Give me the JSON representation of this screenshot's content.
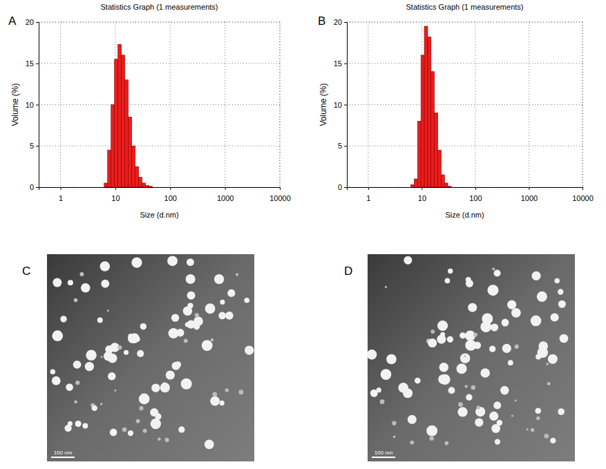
{
  "panels": [
    "A",
    "B",
    "C",
    "D"
  ],
  "chart_data": [
    {
      "type": "histogram",
      "title": "Statistics Graph (1 measurements)",
      "x_label": "Size (d.nm)",
      "y_label": "Volume (%)",
      "bins": [
        6.25,
        7.22,
        8.35,
        9.65,
        11.15,
        12.89,
        14.89,
        17.21,
        19.89,
        22.99,
        26.57,
        30.71,
        35.49,
        41.01,
        47.4
      ],
      "values": [
        0.5,
        4.5,
        10,
        15.5,
        17.3,
        16,
        13,
        8.5,
        5,
        2.5,
        1.2,
        0.5,
        0.2,
        0.1
      ],
      "color": "#ee1c1c",
      "log": "x",
      "grid": true,
      "xlim": [
        0.4,
        10000
      ],
      "xticks": [
        1,
        10,
        100,
        1000,
        10000
      ],
      "ylim": [
        0,
        20
      ],
      "yticks": [
        0,
        5,
        10,
        15,
        20
      ]
    },
    {
      "type": "histogram",
      "title": "Statistics Graph (1 measurements)",
      "x_label": "Size (d.nm)",
      "y_label": "Volume (%)",
      "bins": [
        6.25,
        7.22,
        8.35,
        9.65,
        11.15,
        12.89,
        14.89,
        17.21,
        19.89,
        22.99,
        26.57,
        30.71,
        35.49
      ],
      "values": [
        0.3,
        1,
        8,
        16,
        19.5,
        18.2,
        14,
        9,
        4.5,
        1.5,
        0.5,
        0.1
      ],
      "color": "#ee1c1c",
      "log": "x",
      "grid": true,
      "xlim": [
        0.4,
        10000
      ],
      "xticks": [
        1,
        10,
        100,
        1000,
        10000
      ],
      "ylim": [
        0,
        20
      ],
      "yticks": [
        0,
        5,
        10,
        15,
        20
      ]
    }
  ],
  "images": [
    {
      "scale_bar": "100 nm"
    },
    {
      "scale_bar": "100 nm"
    }
  ]
}
